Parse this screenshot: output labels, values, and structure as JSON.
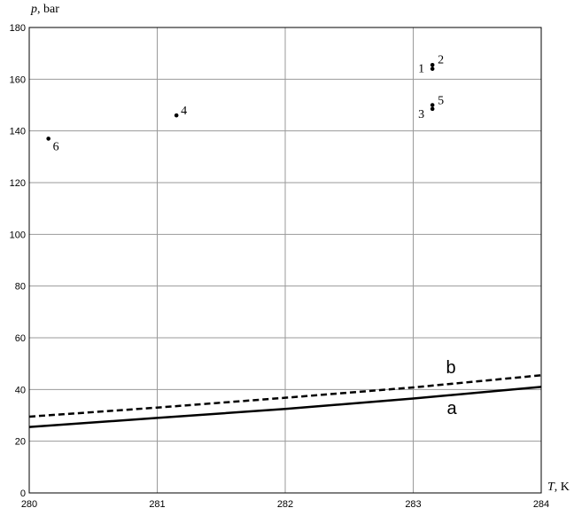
{
  "chart_data": {
    "type": "scatter",
    "xlabel": "T",
    "xunit": ", K",
    "ylabel": "p",
    "yunit": ", bar",
    "xlim": [
      280,
      284
    ],
    "ylim": [
      0,
      180
    ],
    "grid": true,
    "xticks": [
      "280",
      "281",
      "282",
      "283",
      "284"
    ],
    "yticks": [
      "0",
      "20",
      "40",
      "60",
      "80",
      "100",
      "120",
      "140",
      "160",
      "180"
    ],
    "points": [
      {
        "label": "1",
        "x": 283.15,
        "y": 164
      },
      {
        "label": "2",
        "x": 283.15,
        "y": 165.5
      },
      {
        "label": "3",
        "x": 283.15,
        "y": 148.5
      },
      {
        "label": "4",
        "x": 281.15,
        "y": 146
      },
      {
        "label": "5",
        "x": 283.15,
        "y": 150
      },
      {
        "label": "6",
        "x": 280.15,
        "y": 137
      }
    ],
    "series": [
      {
        "name": "a",
        "style": "solid",
        "x": [
          280,
          281,
          282,
          283,
          284
        ],
        "y": [
          25.5,
          29.0,
          32.5,
          36.5,
          41.0
        ]
      },
      {
        "name": "b",
        "style": "dashed",
        "x": [
          280,
          281,
          282,
          283,
          284
        ],
        "y": [
          29.5,
          33.0,
          36.8,
          40.8,
          45.5
        ]
      }
    ]
  }
}
